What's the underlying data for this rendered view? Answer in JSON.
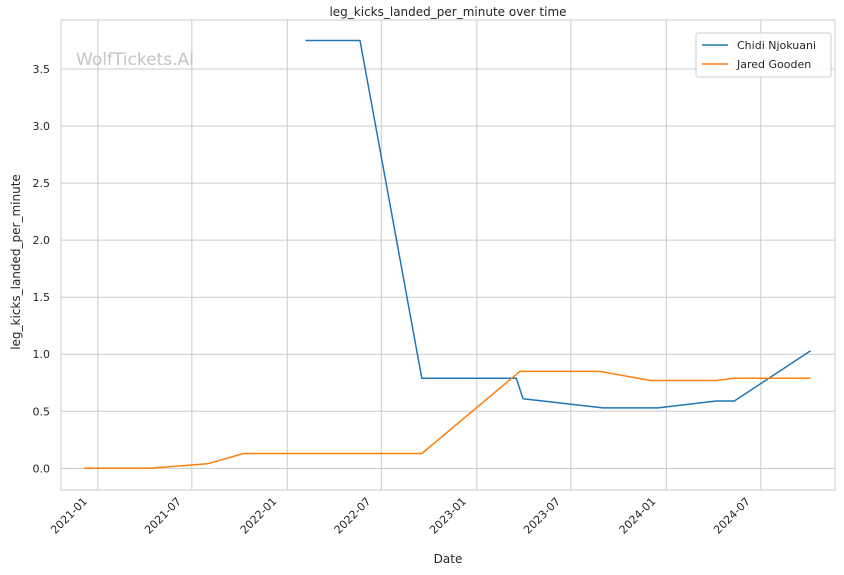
{
  "chart_data": {
    "type": "line",
    "title": "leg_kicks_landed_per_minute over time",
    "xlabel": "Date",
    "ylabel": "leg_kicks_landed_per_minute",
    "watermark": "WolfTickets.AI",
    "x_ticks": [
      "2021-01",
      "2021-07",
      "2022-01",
      "2022-07",
      "2023-01",
      "2023-07",
      "2024-01",
      "2024-07"
    ],
    "y_ticks": [
      "0.0",
      "0.5",
      "1.0",
      "1.5",
      "2.0",
      "2.5",
      "3.0",
      "3.5"
    ],
    "xlim": [
      "2020-10-22",
      "2024-11-21"
    ],
    "ylim": [
      -0.19,
      3.93
    ],
    "grid": true,
    "legend_position": "top-right",
    "series": [
      {
        "name": "Chidi Njokuani",
        "color": "#1f77b4",
        "points": [
          [
            "2022-02-05",
            3.75
          ],
          [
            "2022-05-21",
            3.75
          ],
          [
            "2022-09-17",
            0.79
          ],
          [
            "2023-03-18",
            0.79
          ],
          [
            "2023-03-31",
            0.61
          ],
          [
            "2023-09-01",
            0.53
          ],
          [
            "2023-12-16",
            0.53
          ],
          [
            "2024-04-06",
            0.59
          ],
          [
            "2024-05-11",
            0.59
          ],
          [
            "2024-10-05",
            1.03
          ]
        ]
      },
      {
        "name": "Jared Gooden",
        "color": "#ff7f0e",
        "points": [
          [
            "2020-12-05",
            0.0
          ],
          [
            "2021-04-10",
            0.0
          ],
          [
            "2021-07-31",
            0.04
          ],
          [
            "2021-10-09",
            0.13
          ],
          [
            "2022-09-17",
            0.13
          ],
          [
            "2023-03-25",
            0.85
          ],
          [
            "2023-08-26",
            0.85
          ],
          [
            "2023-12-02",
            0.77
          ],
          [
            "2024-04-06",
            0.77
          ],
          [
            "2024-05-11",
            0.79
          ],
          [
            "2024-10-05",
            0.79
          ]
        ]
      }
    ]
  }
}
